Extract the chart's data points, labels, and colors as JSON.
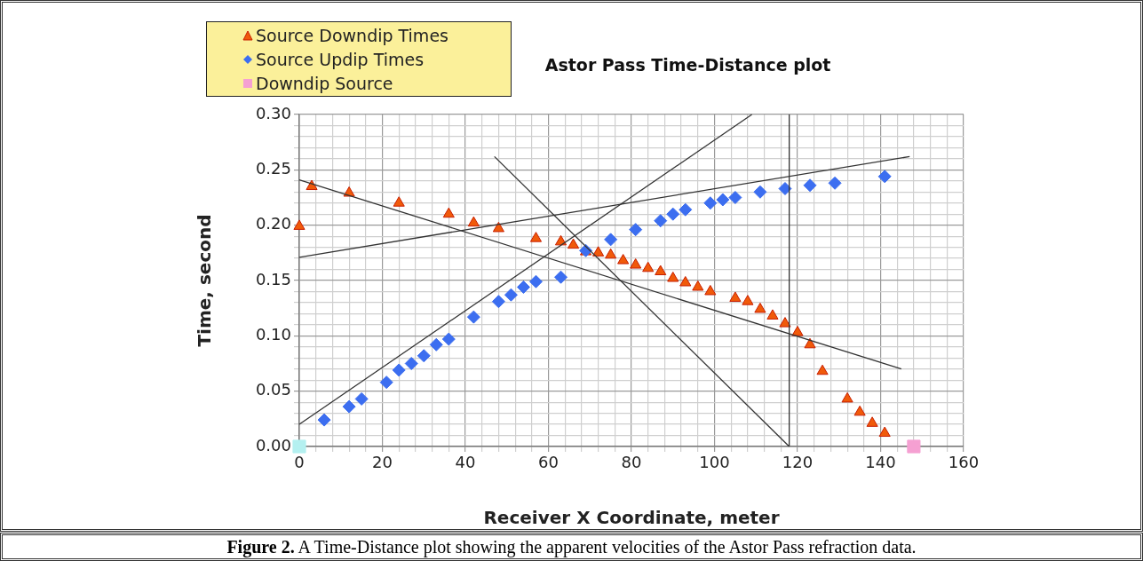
{
  "chart_data": {
    "type": "scatter",
    "title": "Astor Pass Time-Distance plot",
    "xlabel": "Receiver X Coordinate, meter",
    "ylabel": "Time, second",
    "annotations": [
      "Figure 2.",
      "A Time-Distance plot showing the apparent velocities of the Astor Pass refraction data."
    ],
    "xlim": [
      0,
      160
    ],
    "ylim": [
      0,
      0.3
    ],
    "xticks": [
      0,
      {
        "value": 4,
        "label": null
      },
      {
        "value": 8,
        "label": null
      },
      {
        "value": 12,
        "label": null
      },
      {
        "value": 16,
        "label": null
      },
      20,
      {
        "value": 24,
        "label": null
      },
      {
        "value": 28,
        "label": null
      },
      {
        "value": 32,
        "label": null
      },
      {
        "value": 36,
        "label": null
      },
      40,
      {
        "value": 44,
        "label": null
      },
      {
        "value": 48,
        "label": null
      },
      {
        "value": 52,
        "label": null
      },
      {
        "value": 56,
        "label": null
      },
      60,
      {
        "value": 64,
        "label": null
      },
      {
        "value": 68,
        "label": null
      },
      {
        "value": 72,
        "label": null
      },
      {
        "value": 76,
        "label": null
      },
      80,
      {
        "value": 84,
        "label": null
      },
      {
        "value": 88,
        "label": null
      },
      {
        "value": 92,
        "label": null
      },
      {
        "value": 96,
        "label": null
      },
      100,
      {
        "value": 104,
        "label": null
      },
      {
        "value": 108,
        "label": null
      },
      {
        "value": 112,
        "label": null
      },
      {
        "value": 116,
        "label": null
      },
      120,
      {
        "value": 124,
        "label": null
      },
      {
        "value": 128,
        "label": null
      },
      {
        "value": 132,
        "label": null
      },
      {
        "value": 136,
        "label": null
      },
      140,
      {
        "value": 144,
        "label": null
      },
      {
        "value": 148,
        "label": null
      },
      {
        "value": 152,
        "label": null
      },
      {
        "value": 156,
        "label": null
      },
      160
    ],
    "yticks": [
      {
        "value": 0,
        "label": "0.00"
      },
      {
        "value": 0.01,
        "label": null
      },
      {
        "value": 0.02,
        "label": null
      },
      {
        "value": 0.03,
        "label": null
      },
      {
        "value": 0.04,
        "label": null
      },
      {
        "value": 0.05,
        "label": "0.05"
      },
      {
        "value": 0.06,
        "label": null
      },
      {
        "value": 0.07,
        "label": null
      },
      {
        "value": 0.08,
        "label": null
      },
      {
        "value": 0.09,
        "label": null
      },
      {
        "value": 0.1,
        "label": "0.10"
      },
      {
        "value": 0.11,
        "label": null
      },
      {
        "value": 0.12,
        "label": null
      },
      {
        "value": 0.13,
        "label": null
      },
      {
        "value": 0.14,
        "label": null
      },
      {
        "value": 0.15,
        "label": "0.15"
      },
      {
        "value": 0.16,
        "label": null
      },
      {
        "value": 0.17,
        "label": null
      },
      {
        "value": 0.18,
        "label": null
      },
      {
        "value": 0.19,
        "label": null
      },
      {
        "value": 0.2,
        "label": "0.20"
      },
      {
        "value": 0.21,
        "label": null
      },
      {
        "value": 0.22,
        "label": null
      },
      {
        "value": 0.23,
        "label": null
      },
      {
        "value": 0.24,
        "label": null
      },
      {
        "value": 0.25,
        "label": "0.25"
      },
      {
        "value": 0.26,
        "label": null
      },
      {
        "value": 0.27,
        "label": null
      },
      {
        "value": 0.28,
        "label": null
      },
      {
        "value": 0.29,
        "label": null
      },
      {
        "value": 0.3,
        "label": "0.30"
      }
    ],
    "grid": true,
    "legend": "top left",
    "series": [
      {
        "name": "Source Downdip Times",
        "color": "#f05a0a",
        "marker": "triangle",
        "x": [
          0,
          3,
          12,
          24,
          36,
          42,
          48,
          57,
          63,
          66,
          69,
          72,
          75,
          78,
          81,
          84,
          87,
          90,
          93,
          96,
          99,
          105,
          108,
          111,
          114,
          117,
          120,
          123,
          126,
          132,
          135,
          138,
          141
        ],
        "values": [
          0.199,
          0.235,
          0.229,
          0.22,
          0.21,
          0.202,
          0.197,
          0.188,
          0.185,
          0.182,
          0.176,
          0.175,
          0.173,
          0.168,
          0.164,
          0.161,
          0.158,
          0.152,
          0.148,
          0.144,
          0.14,
          0.134,
          0.131,
          0.124,
          0.118,
          0.111,
          0.103,
          0.092,
          0.068,
          0.043,
          0.031,
          0.021,
          0.012
        ]
      },
      {
        "name": "Source Updip Times",
        "color": "#3c6ef0",
        "marker": "diamond",
        "x": [
          6,
          12,
          15,
          21,
          24,
          27,
          30,
          33,
          36,
          42,
          48,
          51,
          54,
          57,
          63,
          69,
          75,
          81,
          87,
          90,
          93,
          99,
          102,
          105,
          111,
          117,
          123,
          129,
          141
        ],
        "values": [
          0.024,
          0.036,
          0.043,
          0.058,
          0.069,
          0.075,
          0.082,
          0.092,
          0.097,
          0.117,
          0.131,
          0.137,
          0.144,
          0.149,
          0.153,
          0.177,
          0.187,
          0.196,
          0.204,
          0.21,
          0.214,
          0.22,
          0.223,
          0.225,
          0.23,
          0.233,
          0.236,
          0.238,
          0.244
        ]
      },
      {
        "name": "Downdip Source",
        "color": "#f5a0d2",
        "marker": "square",
        "x": [
          148
        ],
        "values": [
          0
        ]
      },
      {
        "color": "#b4f0f0",
        "marker": "square",
        "x": [
          0
        ],
        "values": [
          0
        ]
      },
      {
        "type": "line",
        "color": "#333333",
        "marker": "none",
        "x": [
          0,
          145
        ],
        "values": [
          0.241,
          0.07
        ]
      },
      {
        "type": "line",
        "color": "#333333",
        "marker": "none",
        "x": [
          0,
          109
        ],
        "values": [
          0.02,
          0.3
        ]
      },
      {
        "type": "line",
        "color": "#333333",
        "marker": "none",
        "x": [
          0,
          147
        ],
        "values": [
          0.171,
          0.262
        ]
      },
      {
        "type": "line",
        "color": "#333333",
        "marker": "none",
        "x": [
          47,
          118
        ],
        "values": [
          0.262,
          0
        ]
      },
      {
        "type": "line",
        "color": "#333333",
        "marker": "none",
        "x": [
          118,
          118
        ],
        "values": [
          0,
          0.3
        ]
      }
    ]
  }
}
